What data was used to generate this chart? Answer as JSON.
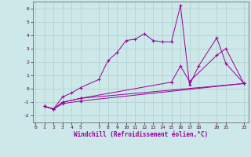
{
  "xlabel": "Windchill (Refroidissement éolien,°C)",
  "bg_color": "#cce8e8",
  "grid_color": "#b0cccc",
  "line_color": "#990099",
  "xlim": [
    -0.3,
    23.5
  ],
  "ylim": [
    -2.5,
    6.5
  ],
  "xticks": [
    0,
    1,
    2,
    3,
    4,
    5,
    7,
    8,
    9,
    10,
    11,
    12,
    13,
    14,
    15,
    16,
    17,
    18,
    20,
    21,
    23
  ],
  "yticks": [
    -2,
    -1,
    0,
    1,
    2,
    3,
    4,
    5,
    6
  ],
  "lines": [
    {
      "x": [
        1,
        2,
        3,
        4,
        5,
        7,
        8,
        9,
        10,
        11,
        12,
        13,
        14,
        15,
        16,
        17,
        18,
        20,
        21,
        23
      ],
      "y": [
        -1.3,
        -1.5,
        -0.6,
        -0.3,
        0.1,
        0.7,
        2.1,
        2.7,
        3.6,
        3.7,
        4.1,
        3.6,
        3.5,
        3.5,
        6.2,
        0.3,
        1.7,
        3.8,
        1.9,
        0.4
      ]
    },
    {
      "x": [
        1,
        2,
        3,
        5,
        15,
        16,
        17,
        20,
        21,
        23
      ],
      "y": [
        -1.3,
        -1.5,
        -1.0,
        -0.7,
        0.5,
        1.7,
        0.55,
        2.5,
        3.0,
        0.4
      ]
    },
    {
      "x": [
        1,
        2,
        3,
        5,
        23
      ],
      "y": [
        -1.3,
        -1.5,
        -1.0,
        -0.7,
        0.4
      ]
    },
    {
      "x": [
        1,
        2,
        3,
        5,
        23
      ],
      "y": [
        -1.3,
        -1.5,
        -1.1,
        -0.9,
        0.4
      ]
    }
  ]
}
